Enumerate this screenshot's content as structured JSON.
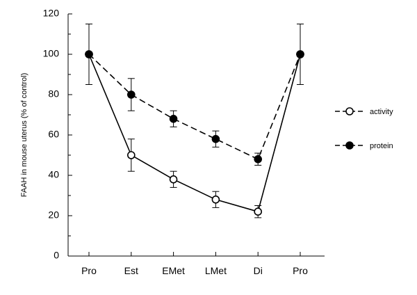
{
  "chart_data": {
    "type": "line",
    "categories": [
      "Pro",
      "Est",
      "EMet",
      "LMet",
      "Di",
      "Pro"
    ],
    "ylabel": "FAAH in mouse uterus (% of control)",
    "ylim": [
      0,
      120
    ],
    "yticks": [
      0,
      20,
      40,
      60,
      80,
      100,
      120
    ],
    "grid": false,
    "legend": "right",
    "series": [
      {
        "name": "activity",
        "values": [
          100,
          50,
          38,
          28,
          22,
          100
        ],
        "errors": [
          15,
          8,
          4,
          4,
          3,
          15
        ],
        "marker": "open-circle",
        "line": "solid",
        "color": "#000000"
      },
      {
        "name": "protein",
        "values": [
          100,
          80,
          68,
          58,
          48,
          100
        ],
        "errors": [
          0,
          8,
          4,
          4,
          3,
          0
        ],
        "marker": "filled-circle",
        "line": "dashed",
        "color": "#000000"
      }
    ]
  }
}
